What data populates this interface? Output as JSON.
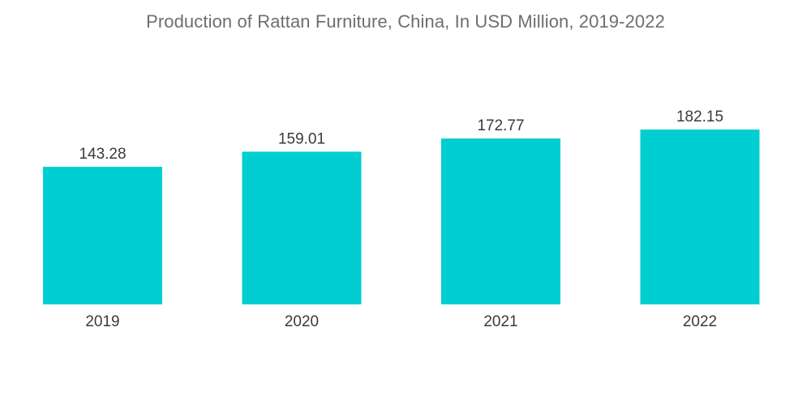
{
  "chart_data": {
    "type": "bar",
    "title": "Production of Rattan Furniture, China, In USD Million, 2019-2022",
    "categories": [
      "2019",
      "2020",
      "2021",
      "2022"
    ],
    "values": [
      143.28,
      159.01,
      172.77,
      182.15
    ],
    "value_labels": [
      "143.28",
      "159.01",
      "172.77",
      "182.15"
    ],
    "xlabel": "",
    "ylabel": "",
    "ylim": [
      0,
      182.15
    ],
    "grid": false,
    "legend": "none",
    "bar_color": "#00CED1"
  }
}
